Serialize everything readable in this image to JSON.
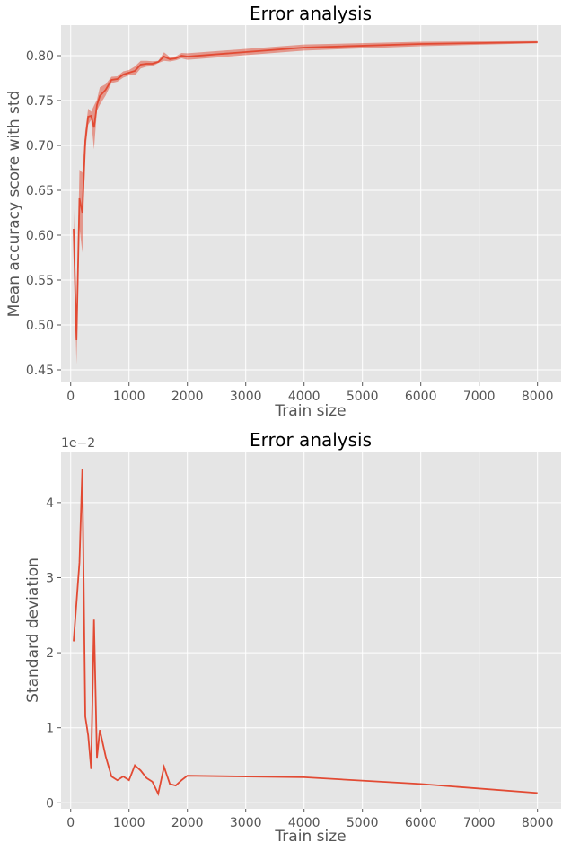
{
  "chart_data": [
    {
      "type": "line",
      "title": "Error analysis",
      "xlabel": "Train size",
      "ylabel": "Mean accuracy score with std",
      "xlim": [
        -165,
        8405
      ],
      "ylim": [
        0.436,
        0.834
      ],
      "xticks": [
        0,
        1000,
        2000,
        3000,
        4000,
        5000,
        6000,
        7000,
        8000
      ],
      "xtick_labels": [
        "0",
        "1000",
        "2000",
        "3000",
        "4000",
        "5000",
        "6000",
        "7000",
        "8000"
      ],
      "yticks": [
        0.45,
        0.5,
        0.55,
        0.6,
        0.65,
        0.7,
        0.75,
        0.8
      ],
      "ytick_labels": [
        "0.45",
        "0.50",
        "0.55",
        "0.60",
        "0.65",
        "0.70",
        "0.75",
        "0.80"
      ],
      "grid": true,
      "style": "ggplot",
      "line_color": "#E24A33",
      "band_color": "#E24A33",
      "band": "mean ± std",
      "x": [
        50,
        100,
        150,
        200,
        250,
        300,
        350,
        400,
        450,
        500,
        600,
        700,
        800,
        900,
        1000,
        1100,
        1200,
        1300,
        1400,
        1500,
        1600,
        1700,
        1800,
        1900,
        2000,
        4000,
        6000,
        8000
      ],
      "mean": [
        0.607,
        0.483,
        0.641,
        0.625,
        0.705,
        0.732,
        0.733,
        0.72,
        0.745,
        0.755,
        0.762,
        0.773,
        0.774,
        0.779,
        0.781,
        0.783,
        0.79,
        0.791,
        0.791,
        0.793,
        0.799,
        0.796,
        0.797,
        0.8,
        0.799,
        0.809,
        0.813,
        0.815
      ]
    },
    {
      "type": "line",
      "title": "Error analysis",
      "xlabel": "Train size",
      "ylabel": "Standard deviation",
      "y_offset_label": "1e−2",
      "xlim": [
        -165,
        8405
      ],
      "ylim": [
        -0.08,
        4.68
      ],
      "xticks": [
        0,
        1000,
        2000,
        3000,
        4000,
        5000,
        6000,
        7000,
        8000
      ],
      "xtick_labels": [
        "0",
        "1000",
        "2000",
        "3000",
        "4000",
        "5000",
        "6000",
        "7000",
        "8000"
      ],
      "yticks": [
        0,
        1,
        2,
        3,
        4
      ],
      "ytick_labels": [
        "0",
        "1",
        "2",
        "3",
        "4"
      ],
      "grid": true,
      "style": "ggplot",
      "line_color": "#E24A33",
      "x": [
        50,
        150,
        200,
        250,
        300,
        350,
        400,
        450,
        500,
        600,
        700,
        800,
        900,
        1000,
        1100,
        1200,
        1300,
        1400,
        1500,
        1600,
        1700,
        1800,
        1900,
        2000,
        4000,
        6000,
        8000
      ],
      "y": [
        2.15,
        3.2,
        4.45,
        1.15,
        0.9,
        0.45,
        2.44,
        0.6,
        0.97,
        0.62,
        0.35,
        0.3,
        0.35,
        0.3,
        0.5,
        0.43,
        0.33,
        0.28,
        0.12,
        0.48,
        0.25,
        0.23,
        0.3,
        0.36,
        0.34,
        0.25,
        0.13
      ]
    }
  ]
}
